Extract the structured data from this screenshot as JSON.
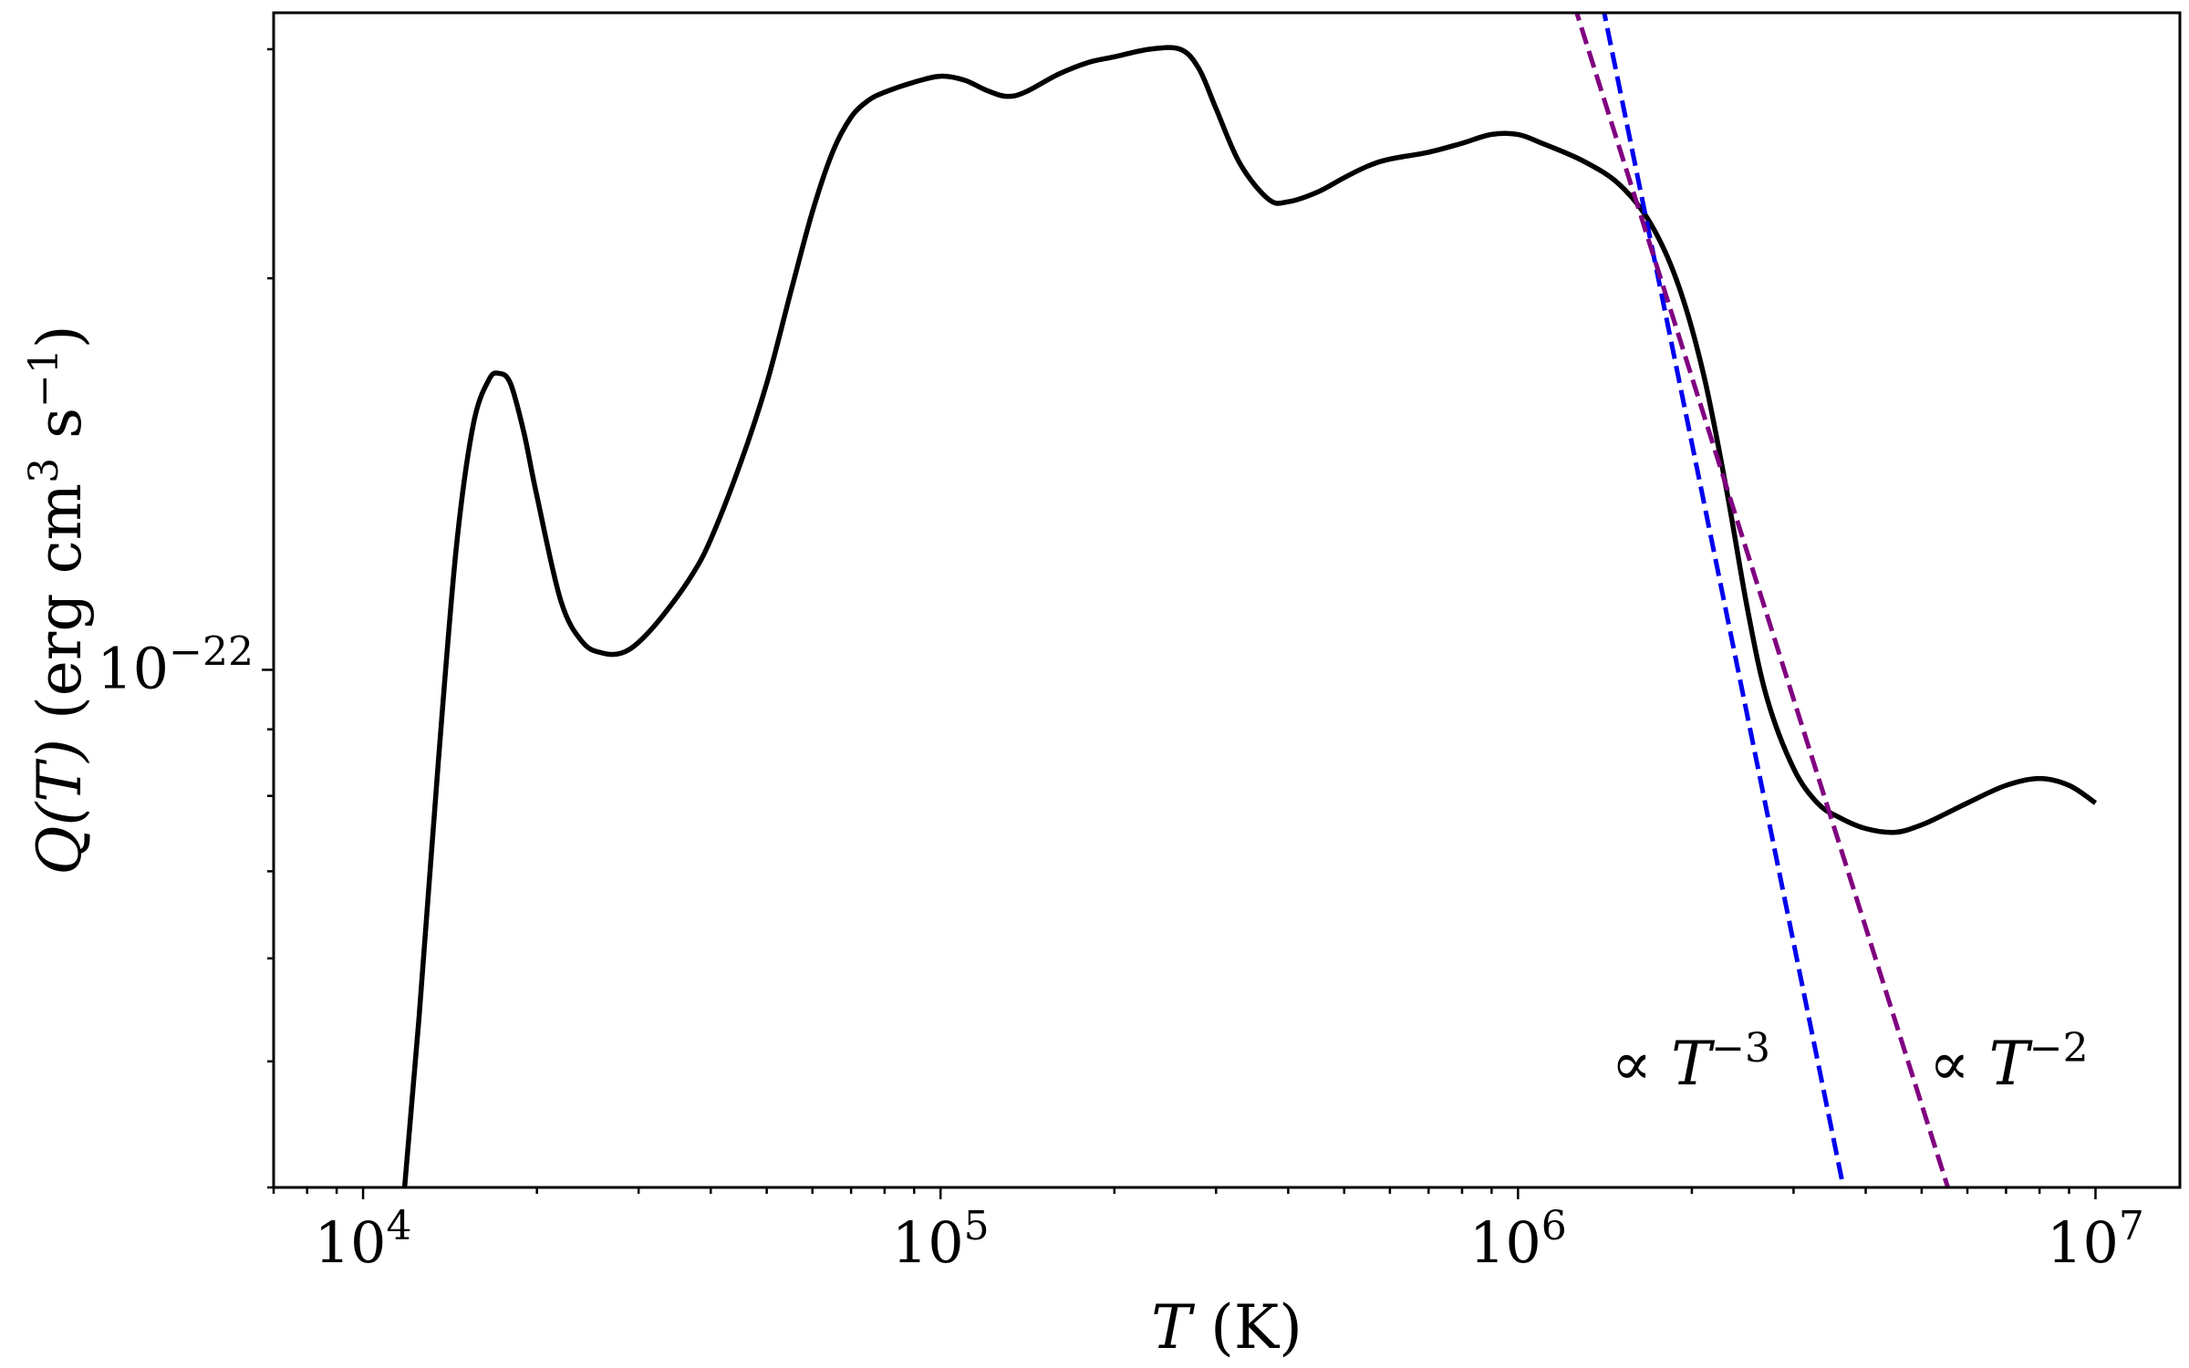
{
  "chart_data": {
    "type": "line",
    "x_scale": "log",
    "y_scale": "log",
    "xlim": [
      7000,
      14000000
    ],
    "ylim": [
      4e-23,
      3.2e-22
    ],
    "xlabel": {
      "main": "T",
      "unit": "(K)"
    },
    "ylabel": {
      "main": "Q(T)",
      "unit_prefix": "(erg cm",
      "cm_exp": "3",
      "s": " s",
      "s_exp": "−1",
      "close": ")"
    },
    "x_ticks": [
      {
        "value": 10000,
        "base": "10",
        "exp": "4"
      },
      {
        "value": 100000,
        "base": "10",
        "exp": "5"
      },
      {
        "value": 1000000,
        "base": "10",
        "exp": "6"
      },
      {
        "value": 10000000,
        "base": "10",
        "exp": "7"
      }
    ],
    "y_ticks": [
      {
        "value": 1e-22,
        "base": "10",
        "exp": "−22"
      }
    ],
    "grid": false,
    "series": [
      {
        "role": "curve",
        "color": "#000000",
        "dash": "solid",
        "x": [
          11800,
          12500,
          13500,
          14500,
          15500,
          16500,
          17200,
          18000,
          19000,
          20000,
          22000,
          24000,
          26000,
          28000,
          30000,
          33000,
          37000,
          40000,
          45000,
          50000,
          55000,
          60000,
          65000,
          70000,
          75000,
          80000,
          90000,
          100000,
          110000,
          120000,
          130000,
          140000,
          160000,
          180000,
          200000,
          230000,
          260000,
          280000,
          300000,
          330000,
          370000,
          400000,
          450000,
          500000,
          550000,
          600000,
          700000,
          800000,
          900000,
          1000000,
          1100000,
          1300000,
          1500000,
          1700000,
          1900000,
          2100000,
          2300000,
          2500000,
          2700000,
          3000000,
          3300000,
          3600000,
          4000000,
          4500000,
          5000000,
          5500000,
          6000000,
          7000000,
          8000000,
          9000000,
          10000000
        ],
        "y": [
          4e-23,
          5.4e-23,
          8.5e-23,
          1.24e-22,
          1.54e-22,
          1.67e-22,
          1.69e-22,
          1.66e-22,
          1.52e-22,
          1.36e-22,
          1.13e-22,
          1.05e-22,
          1.03e-22,
          1.03e-22,
          1.05e-22,
          1.1e-22,
          1.18e-22,
          1.26e-22,
          1.44e-22,
          1.66e-22,
          1.95e-22,
          2.25e-22,
          2.5e-22,
          2.66e-22,
          2.74e-22,
          2.78e-22,
          2.83e-22,
          2.86e-22,
          2.84e-22,
          2.79e-22,
          2.76e-22,
          2.78e-22,
          2.87e-22,
          2.93e-22,
          2.96e-22,
          3e-22,
          3e-22,
          2.9e-22,
          2.7e-22,
          2.45e-22,
          2.3e-22,
          2.29e-22,
          2.33e-22,
          2.39e-22,
          2.44e-22,
          2.47e-22,
          2.5e-22,
          2.54e-22,
          2.58e-22,
          2.58e-22,
          2.54e-22,
          2.46e-22,
          2.36e-22,
          2.2e-22,
          1.97e-22,
          1.68e-22,
          1.37e-22,
          1.11e-22,
          9.5e-23,
          8.4e-23,
          7.9e-23,
          7.7e-23,
          7.55e-23,
          7.5e-23,
          7.6e-23,
          7.75e-23,
          7.9e-23,
          8.15e-23,
          8.25e-23,
          8.15e-23,
          7.9e-23
        ]
      },
      {
        "role": "power-law",
        "label": "∝ T",
        "exp": "−3",
        "color": "#0000ee",
        "dash": "dashed",
        "x": [
          1400000,
          3660000
        ],
        "y": [
          3.25e-22,
          4e-23
        ]
      },
      {
        "role": "power-law",
        "label": "∝ T",
        "exp": "−2",
        "color": "#800080",
        "dash": "dashed",
        "x": [
          1250000,
          5550000
        ],
        "y": [
          3.25e-22,
          4e-23
        ]
      }
    ],
    "annotations": [
      {
        "series": 1,
        "text": "∝ T",
        "exp": "−3",
        "x": 1450000,
        "y": 4.8e-23
      },
      {
        "series": 2,
        "text": "∝ T",
        "exp": "−2",
        "x": 5150000,
        "y": 4.8e-23
      }
    ]
  }
}
